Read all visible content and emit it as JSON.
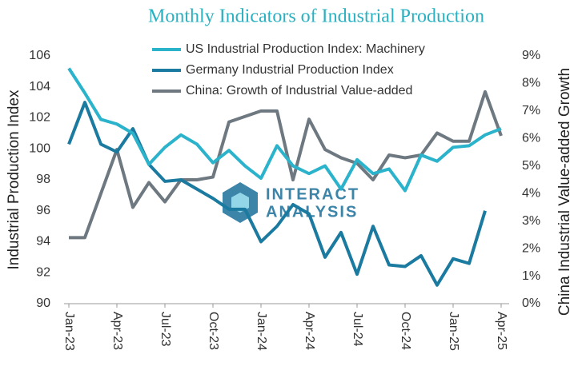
{
  "chart_data": {
    "type": "line",
    "title": "Monthly Indicators of Industrial Production",
    "ylabel": "Industrial Production Index",
    "y2label": "China Industrial Value-added Growth",
    "watermark": [
      "INTERACT",
      "ANALYSIS"
    ],
    "categories": [
      "Jan-23",
      null,
      null,
      "Apr-23",
      null,
      null,
      "Jul-23",
      null,
      null,
      "Oct-23",
      null,
      null,
      "Jan-24",
      null,
      null,
      "Apr-24",
      null,
      null,
      "Jul-24",
      null,
      null,
      "Oct-24",
      null,
      null,
      "Jan-25",
      null,
      null,
      "Apr-25"
    ],
    "ylim": [
      90,
      106
    ],
    "yticks": [
      90,
      92,
      94,
      96,
      98,
      100,
      102,
      104,
      106
    ],
    "y2lim": [
      0,
      9
    ],
    "y2ticks": [
      {
        "value": 0,
        "label": "0%"
      },
      {
        "value": 1,
        "label": "1%"
      },
      {
        "value": 2,
        "label": "2%"
      },
      {
        "value": 3,
        "label": "3%"
      },
      {
        "value": 4,
        "label": "4%"
      },
      {
        "value": 5,
        "label": "5%"
      },
      {
        "value": 6,
        "label": "6%"
      },
      {
        "value": 7,
        "label": "7%"
      },
      {
        "value": 8,
        "label": "8%"
      },
      {
        "value": 9,
        "label": "9%"
      }
    ],
    "grid": false,
    "legend": "top",
    "series": [
      {
        "name": "US Industrial Production Index: Machinery",
        "color": "#2bb3cc",
        "axis": "y",
        "values": [
          105.2,
          103.6,
          101.9,
          101.6,
          101.0,
          99.0,
          100.1,
          100.9,
          100.3,
          99.1,
          99.9,
          98.9,
          98.1,
          100.2,
          98.9,
          98.4,
          98.9,
          97.4,
          99.3,
          98.4,
          98.7,
          97.3,
          99.6,
          99.2,
          100.1,
          100.2,
          100.9,
          101.3
        ]
      },
      {
        "name": "Germany Industrial Production Index",
        "color": "#1b7a9f",
        "axis": "y",
        "values": [
          100.3,
          103.0,
          100.3,
          99.8,
          101.3,
          99.0,
          97.9,
          98.0,
          97.4,
          96.8,
          96.1,
          96.1,
          94.0,
          95.0,
          96.4,
          95.8,
          93.0,
          94.6,
          91.9,
          95.0,
          92.5,
          92.4,
          93.1,
          91.2,
          92.9,
          92.6,
          96.0,
          null
        ]
      },
      {
        "name": "China: Growth of Industrial Value-added",
        "color": "#6d7880",
        "axis": "y2",
        "values": [
          2.4,
          2.4,
          4.0,
          5.6,
          3.5,
          4.4,
          3.7,
          4.5,
          4.5,
          4.6,
          6.6,
          6.8,
          7.0,
          7.0,
          4.5,
          6.7,
          5.6,
          5.3,
          5.1,
          4.5,
          5.4,
          5.3,
          5.4,
          6.2,
          5.9,
          5.9,
          7.7,
          6.1
        ]
      }
    ]
  }
}
